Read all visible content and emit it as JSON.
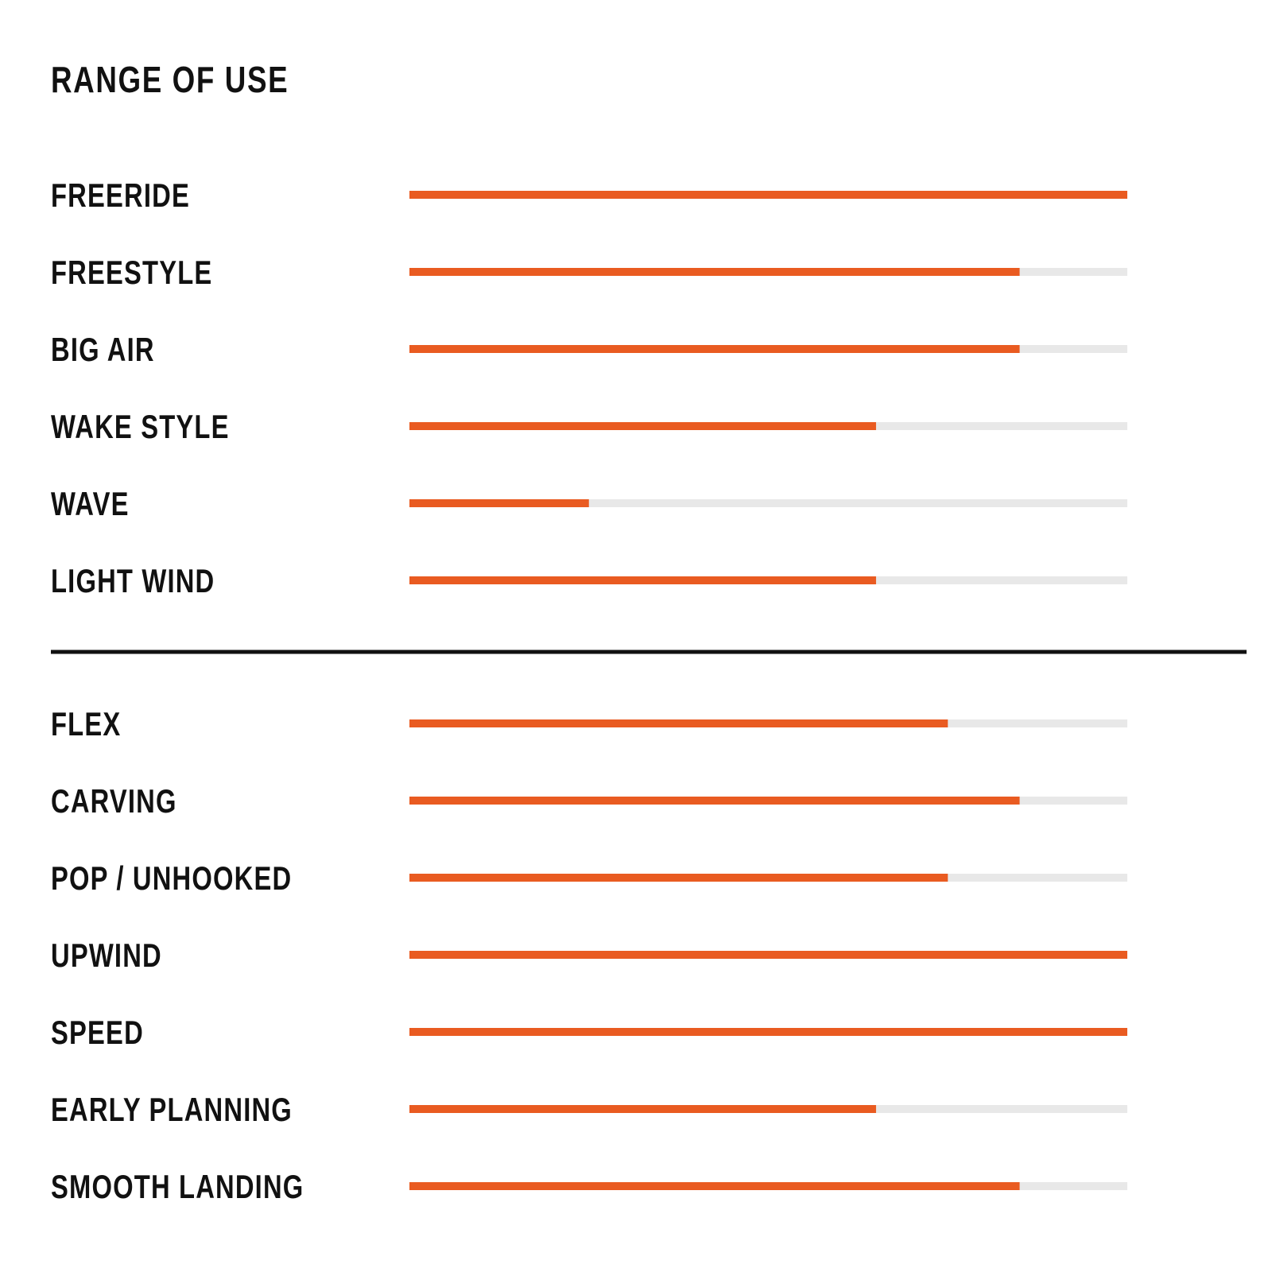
{
  "chart_data": [
    {
      "type": "bar",
      "title": "RANGE OF USE",
      "categories": [
        "FREERIDE",
        "FREESTYLE",
        "BIG AIR",
        "WAKE STYLE",
        "WAVE",
        "LIGHT WIND"
      ],
      "values": [
        100,
        85,
        85,
        65,
        25,
        65
      ],
      "color": "#e95b21",
      "track_color": "#e8e8e8",
      "xlim": [
        0,
        100
      ]
    },
    {
      "type": "bar",
      "categories": [
        "FLEX",
        "CARVING",
        "POP / UNHOOKED",
        "UPWIND",
        "SPEED",
        "EARLY PLANNING",
        "SMOOTH LANDING"
      ],
      "values": [
        75,
        85,
        75,
        100,
        100,
        65,
        85
      ],
      "color": "#e95b21",
      "track_color": "#e8e8e8",
      "xlim": [
        0,
        100
      ]
    }
  ]
}
